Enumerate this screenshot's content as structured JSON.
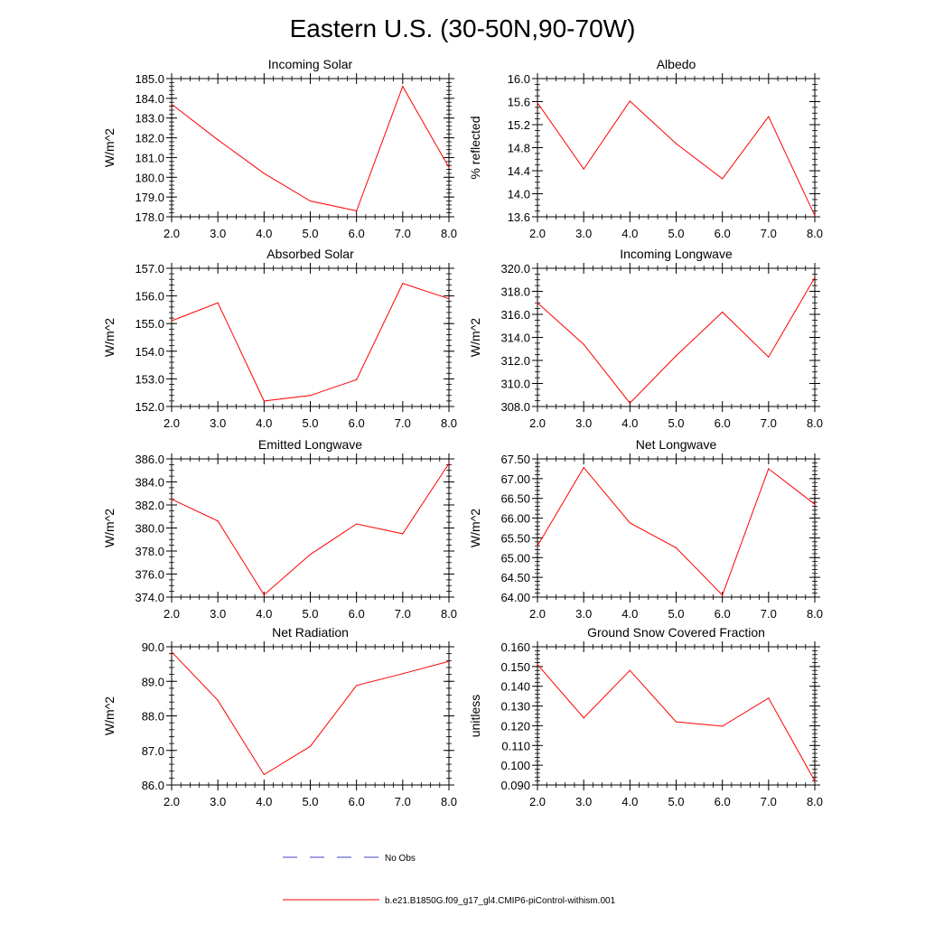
{
  "figure": {
    "title": "Eastern U.S. (30-50N,90-70W)",
    "line_color": "#ff0000",
    "obs_color": "#4040c0"
  },
  "legend": {
    "obs_label": "No Obs",
    "model_label": "b.e21.B1850G.f09_g17_gl4.CMIP6-piControl-withism.001"
  },
  "chart_data": [
    {
      "type": "line",
      "title": "Incoming Solar",
      "ylabel": "W/m^2",
      "xlabel": "",
      "x": [
        2,
        3,
        4,
        5,
        6,
        7,
        8
      ],
      "xticks": [
        2,
        3,
        4,
        5,
        6,
        7,
        8
      ],
      "xtick_labels": [
        "2.0",
        "3.0",
        "4.0",
        "5.0",
        "6.0",
        "7.0",
        "8.0"
      ],
      "xlim": [
        2,
        8
      ],
      "ylim": [
        178,
        185
      ],
      "yticks": [
        178,
        179,
        180,
        181,
        182,
        183,
        184,
        185
      ],
      "ytick_labels": [
        "178.0",
        "179.0",
        "180.0",
        "181.0",
        "182.0",
        "183.0",
        "184.0",
        "185.0"
      ],
      "y_minor_step": 0.2,
      "series": [
        {
          "name": "b.e21.B1850G.f09_g17_gl4.CMIP6-piControl-withism.001",
          "values": [
            183.7,
            181.9,
            180.2,
            178.8,
            178.3,
            184.6,
            180.5
          ]
        }
      ]
    },
    {
      "type": "line",
      "title": "Albedo",
      "ylabel": "% reflected",
      "xlabel": "",
      "x": [
        2,
        3,
        4,
        5,
        6,
        7,
        8
      ],
      "xticks": [
        2,
        3,
        4,
        5,
        6,
        7,
        8
      ],
      "xtick_labels": [
        "2.0",
        "3.0",
        "4.0",
        "5.0",
        "6.0",
        "7.0",
        "8.0"
      ],
      "xlim": [
        2,
        8
      ],
      "ylim": [
        13.6,
        16.0
      ],
      "yticks": [
        13.6,
        14.0,
        14.4,
        14.8,
        15.2,
        15.6,
        16.0
      ],
      "ytick_labels": [
        "13.6",
        "14.0",
        "14.4",
        "14.8",
        "15.2",
        "15.6",
        "16.0"
      ],
      "y_minor_step": 0.1,
      "series": [
        {
          "name": "b.e21.B1850G.f09_g17_gl4.CMIP6-piControl-withism.001",
          "values": [
            15.58,
            14.43,
            15.61,
            14.87,
            14.26,
            15.34,
            13.62
          ]
        }
      ]
    },
    {
      "type": "line",
      "title": "Absorbed Solar",
      "ylabel": "W/m^2",
      "xlabel": "",
      "x": [
        2,
        3,
        4,
        5,
        6,
        7,
        8
      ],
      "xticks": [
        2,
        3,
        4,
        5,
        6,
        7,
        8
      ],
      "xtick_labels": [
        "2.0",
        "3.0",
        "4.0",
        "5.0",
        "6.0",
        "7.0",
        "8.0"
      ],
      "xlim": [
        2,
        8
      ],
      "ylim": [
        152,
        157
      ],
      "yticks": [
        152,
        153,
        154,
        155,
        156,
        157
      ],
      "ytick_labels": [
        "152.0",
        "153.0",
        "154.0",
        "155.0",
        "156.0",
        "157.0"
      ],
      "y_minor_step": 0.2,
      "series": [
        {
          "name": "b.e21.B1850G.f09_g17_gl4.CMIP6-piControl-withism.001",
          "values": [
            155.1,
            155.75,
            152.2,
            152.4,
            152.97,
            156.45,
            155.9
          ]
        }
      ]
    },
    {
      "type": "line",
      "title": "Incoming Longwave",
      "ylabel": "W/m^2",
      "xlabel": "",
      "x": [
        2,
        3,
        4,
        5,
        6,
        7,
        8
      ],
      "xticks": [
        2,
        3,
        4,
        5,
        6,
        7,
        8
      ],
      "xtick_labels": [
        "2.0",
        "3.0",
        "4.0",
        "5.0",
        "6.0",
        "7.0",
        "8.0"
      ],
      "xlim": [
        2,
        8
      ],
      "ylim": [
        308,
        320
      ],
      "yticks": [
        308,
        310,
        312,
        314,
        316,
        318,
        320
      ],
      "ytick_labels": [
        "308.0",
        "310.0",
        "312.0",
        "314.0",
        "316.0",
        "318.0",
        "320.0"
      ],
      "y_minor_step": 0.5,
      "series": [
        {
          "name": "b.e21.B1850G.f09_g17_gl4.CMIP6-piControl-withism.001",
          "values": [
            317.0,
            313.4,
            308.3,
            312.4,
            316.2,
            312.3,
            319.2
          ]
        }
      ]
    },
    {
      "type": "line",
      "title": "Emitted Longwave",
      "ylabel": "W/m^2",
      "xlabel": "",
      "x": [
        2,
        3,
        4,
        5,
        6,
        7,
        8
      ],
      "xticks": [
        2,
        3,
        4,
        5,
        6,
        7,
        8
      ],
      "xtick_labels": [
        "2.0",
        "3.0",
        "4.0",
        "5.0",
        "6.0",
        "7.0",
        "8.0"
      ],
      "xlim": [
        2,
        8
      ],
      "ylim": [
        374,
        386
      ],
      "yticks": [
        374,
        376,
        378,
        380,
        382,
        384,
        386
      ],
      "ytick_labels": [
        "374.0",
        "376.0",
        "378.0",
        "380.0",
        "382.0",
        "384.0",
        "386.0"
      ],
      "y_minor_step": 0.5,
      "series": [
        {
          "name": "b.e21.B1850G.f09_g17_gl4.CMIP6-piControl-withism.001",
          "values": [
            382.5,
            380.6,
            374.2,
            377.7,
            380.35,
            379.5,
            385.6
          ]
        }
      ]
    },
    {
      "type": "line",
      "title": "Net Longwave",
      "ylabel": "W/m^2",
      "xlabel": "",
      "x": [
        2,
        3,
        4,
        5,
        6,
        7,
        8
      ],
      "xticks": [
        2,
        3,
        4,
        5,
        6,
        7,
        8
      ],
      "xtick_labels": [
        "2.0",
        "3.0",
        "4.0",
        "5.0",
        "6.0",
        "7.0",
        "8.0"
      ],
      "xlim": [
        2,
        8
      ],
      "ylim": [
        64.0,
        67.5
      ],
      "yticks": [
        64.0,
        64.5,
        65.0,
        65.5,
        66.0,
        66.5,
        67.0,
        67.5
      ],
      "ytick_labels": [
        "64.00",
        "64.50",
        "65.00",
        "65.50",
        "66.00",
        "66.50",
        "67.00",
        "67.50"
      ],
      "y_minor_step": 0.1,
      "series": [
        {
          "name": "b.e21.B1850G.f09_g17_gl4.CMIP6-piControl-withism.001",
          "values": [
            65.3,
            67.28,
            65.88,
            65.25,
            64.05,
            67.25,
            66.35
          ]
        }
      ]
    },
    {
      "type": "line",
      "title": "Net Radiation",
      "ylabel": "W/m^2",
      "xlabel": "",
      "x": [
        2,
        3,
        4,
        5,
        6,
        7,
        8
      ],
      "xticks": [
        2,
        3,
        4,
        5,
        6,
        7,
        8
      ],
      "xtick_labels": [
        "2.0",
        "3.0",
        "4.0",
        "5.0",
        "6.0",
        "7.0",
        "8.0"
      ],
      "xlim": [
        2,
        8
      ],
      "ylim": [
        86,
        90
      ],
      "yticks": [
        86,
        87,
        88,
        89,
        90
      ],
      "ytick_labels": [
        "86.0",
        "87.0",
        "88.0",
        "89.0",
        "90.0"
      ],
      "y_minor_step": 0.2,
      "series": [
        {
          "name": "b.e21.B1850G.f09_g17_gl4.CMIP6-piControl-withism.001",
          "values": [
            89.85,
            88.45,
            86.3,
            87.12,
            88.88,
            89.22,
            89.58
          ]
        }
      ]
    },
    {
      "type": "line",
      "title": "Ground Snow Covered Fraction",
      "ylabel": "unitless",
      "xlabel": "",
      "x": [
        2,
        3,
        4,
        5,
        6,
        7,
        8
      ],
      "xticks": [
        2,
        3,
        4,
        5,
        6,
        7,
        8
      ],
      "xtick_labels": [
        "2.0",
        "3.0",
        "4.0",
        "5.0",
        "6.0",
        "7.0",
        "8.0"
      ],
      "xlim": [
        2,
        8
      ],
      "ylim": [
        0.09,
        0.16
      ],
      "yticks": [
        0.09,
        0.1,
        0.11,
        0.12,
        0.13,
        0.14,
        0.15,
        0.16
      ],
      "ytick_labels": [
        "0.090",
        "0.100",
        "0.110",
        "0.120",
        "0.130",
        "0.140",
        "0.150",
        "0.160"
      ],
      "y_minor_step": 0.002,
      "series": [
        {
          "name": "b.e21.B1850G.f09_g17_gl4.CMIP6-piControl-withism.001",
          "values": [
            0.151,
            0.124,
            0.148,
            0.122,
            0.1198,
            0.134,
            0.092
          ]
        }
      ]
    }
  ]
}
